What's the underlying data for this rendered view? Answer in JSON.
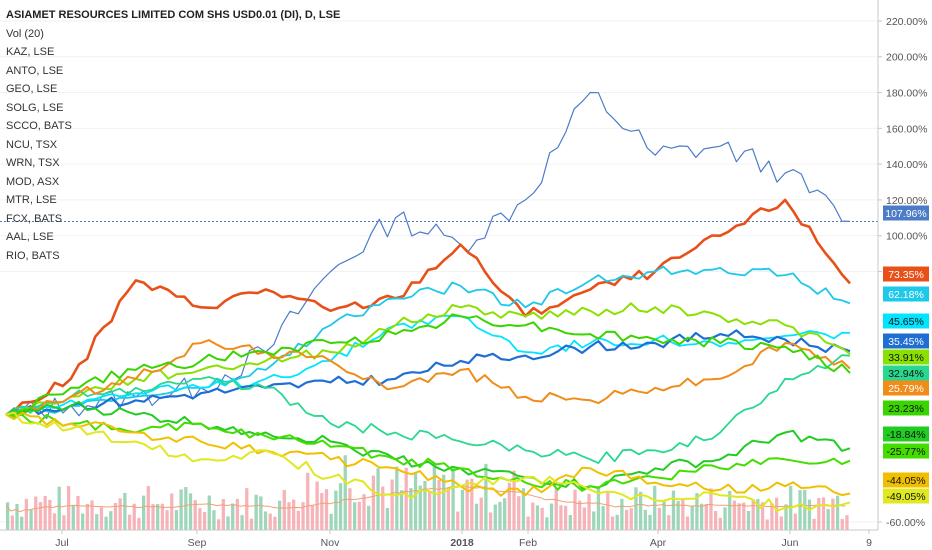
{
  "chart_data": {
    "type": "line",
    "title": "ASIAMET RESOURCES LIMITED COM SHS USD0.01 (DI), D, LSE",
    "legend": [
      "Vol (20)",
      "KAZ, LSE",
      "ANTO, LSE",
      "GEO, LSE",
      "SOLG, LSE",
      "SCCO, BATS",
      "NCU, TSX",
      "WRN, TSX",
      "MOD, ASX",
      "MTR, LSE",
      "FCX, BATS",
      "AAL, LSE",
      "RIO, BATS"
    ],
    "legend_placement": "top-left",
    "x_ticks": [
      "Jul",
      "Sep",
      "Nov",
      "2018",
      "Feb",
      "Apr",
      "Jun",
      "9"
    ],
    "y_ticks": [
      "220.00%",
      "200.00%",
      "180.00%",
      "160.00%",
      "140.00%",
      "120.00%",
      "100.00%",
      "80.00%",
      "-60.00%"
    ],
    "ylim": [
      -60,
      225
    ],
    "reference_line": 107.96,
    "x": [
      0,
      4,
      8,
      12,
      16,
      20,
      24,
      28,
      32,
      36,
      40,
      44,
      48,
      52
    ],
    "series": [
      {
        "label": "107.96%",
        "color": "#4c7cc8",
        "width": 1.2,
        "values": [
          0,
          5,
          10,
          15,
          35,
          80,
          110,
          95,
          120,
          180,
          145,
          150,
          135,
          107.96
        ]
      },
      {
        "label": "73.35%",
        "color": "#e8501a",
        "width": 2.6,
        "values": [
          0,
          20,
          75,
          60,
          70,
          58,
          65,
          95,
          55,
          70,
          80,
          100,
          120,
          73.35
        ]
      },
      {
        "label": "62.18%",
        "color": "#1ec8e8",
        "width": 1.8,
        "values": [
          0,
          5,
          10,
          15,
          25,
          50,
          65,
          72,
          60,
          75,
          80,
          82,
          78,
          62.18
        ]
      },
      {
        "label": "45.65%",
        "color": "#00e5ff",
        "width": 1.8,
        "values": [
          0,
          8,
          12,
          15,
          20,
          30,
          50,
          55,
          35,
          40,
          42,
          38,
          44,
          45.65
        ]
      },
      {
        "label": "35.45%",
        "color": "#1e6ed4",
        "width": 2.2,
        "values": [
          0,
          5,
          8,
          12,
          15,
          18,
          20,
          30,
          33,
          38,
          40,
          45,
          42,
          35.45
        ]
      },
      {
        "label": "33.91%",
        "color": "#8ae000",
        "width": 2.0,
        "values": [
          0,
          10,
          20,
          25,
          30,
          35,
          50,
          60,
          55,
          58,
          60,
          55,
          50,
          33.91
        ]
      },
      {
        "label": "32.94%",
        "color": "#28d890",
        "width": 1.8,
        "values": [
          0,
          10,
          15,
          20,
          15,
          -5,
          -10,
          -15,
          -20,
          -25,
          -20,
          -10,
          20,
          32.94
        ]
      },
      {
        "label": "25.79%",
        "color": "#f08c1a",
        "width": 2.0,
        "values": [
          0,
          10,
          20,
          40,
          35,
          30,
          15,
          25,
          10,
          8,
          15,
          20,
          40,
          25.79
        ]
      },
      {
        "label": "23.23%",
        "color": "#3ad400",
        "width": 2.0,
        "values": [
          0,
          15,
          25,
          30,
          35,
          40,
          45,
          55,
          50,
          45,
          42,
          40,
          38,
          23.23
        ]
      },
      {
        "label": "-18.84%",
        "color": "#22cc22",
        "width": 2.0,
        "values": [
          0,
          5,
          0,
          -5,
          -10,
          -15,
          -25,
          -30,
          -35,
          -40,
          -30,
          -25,
          -10,
          -18.84
        ]
      },
      {
        "label": "-25.77%",
        "color": "#44dd00",
        "width": 2.0,
        "values": [
          0,
          -5,
          -10,
          -5,
          -12,
          -18,
          -25,
          -30,
          -38,
          -40,
          -35,
          -30,
          -25,
          -25.77
        ]
      },
      {
        "label": "-44.05%",
        "color": "#f0c000",
        "width": 2.0,
        "values": [
          0,
          -5,
          -10,
          -15,
          -20,
          -25,
          -30,
          -40,
          -45,
          -30,
          -38,
          -42,
          -40,
          -44.05
        ]
      },
      {
        "label": "-49.05%",
        "color": "#e0e820",
        "width": 2.0,
        "values": [
          0,
          -8,
          -15,
          -25,
          -20,
          -35,
          -45,
          -40,
          -35,
          -42,
          -48,
          -45,
          -52,
          -49.05
        ]
      }
    ],
    "volume_color_up": "#86cca8",
    "volume_color_down": "#f4a0a8",
    "vol_line_color": "#f0a070"
  }
}
